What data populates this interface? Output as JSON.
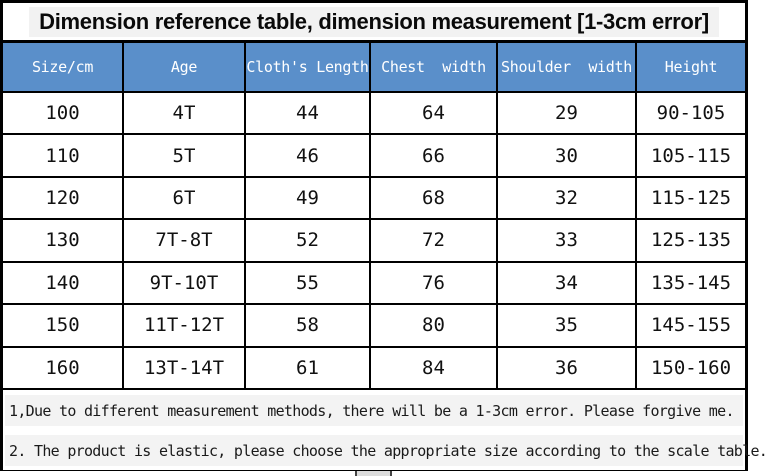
{
  "title": "Dimension reference table, dimension measurement [1-3cm error]",
  "table": {
    "columns": [
      "Size/cm",
      "Age",
      "Cloth's Length",
      "Chest  width",
      "Shoulder  width",
      "Height"
    ],
    "rows": [
      [
        "100",
        "4T",
        "44",
        "64",
        "29",
        "90-105"
      ],
      [
        "110",
        "5T",
        "46",
        "66",
        "30",
        "105-115"
      ],
      [
        "120",
        "6T",
        "49",
        "68",
        "32",
        "115-125"
      ],
      [
        "130",
        "7T-8T",
        "52",
        "72",
        "33",
        "125-135"
      ],
      [
        "140",
        "9T-10T",
        "55",
        "76",
        "34",
        "135-145"
      ],
      [
        "150",
        "11T-12T",
        "58",
        "80",
        "35",
        "145-155"
      ],
      [
        "160",
        "13T-14T",
        "61",
        "84",
        "36",
        "150-160"
      ]
    ]
  },
  "notes": [
    "1,Due to different measurement methods, there will be a 1-3cm error. Please forgive me.",
    "2. The product is elastic, please choose the appropriate size according to the scale table."
  ],
  "colors": {
    "header_bg": "#5a8fca",
    "header_text": "#ffffff",
    "border": "#000000",
    "note_bg": "#f3f3f3",
    "title_highlight": "#f2f2f2"
  }
}
